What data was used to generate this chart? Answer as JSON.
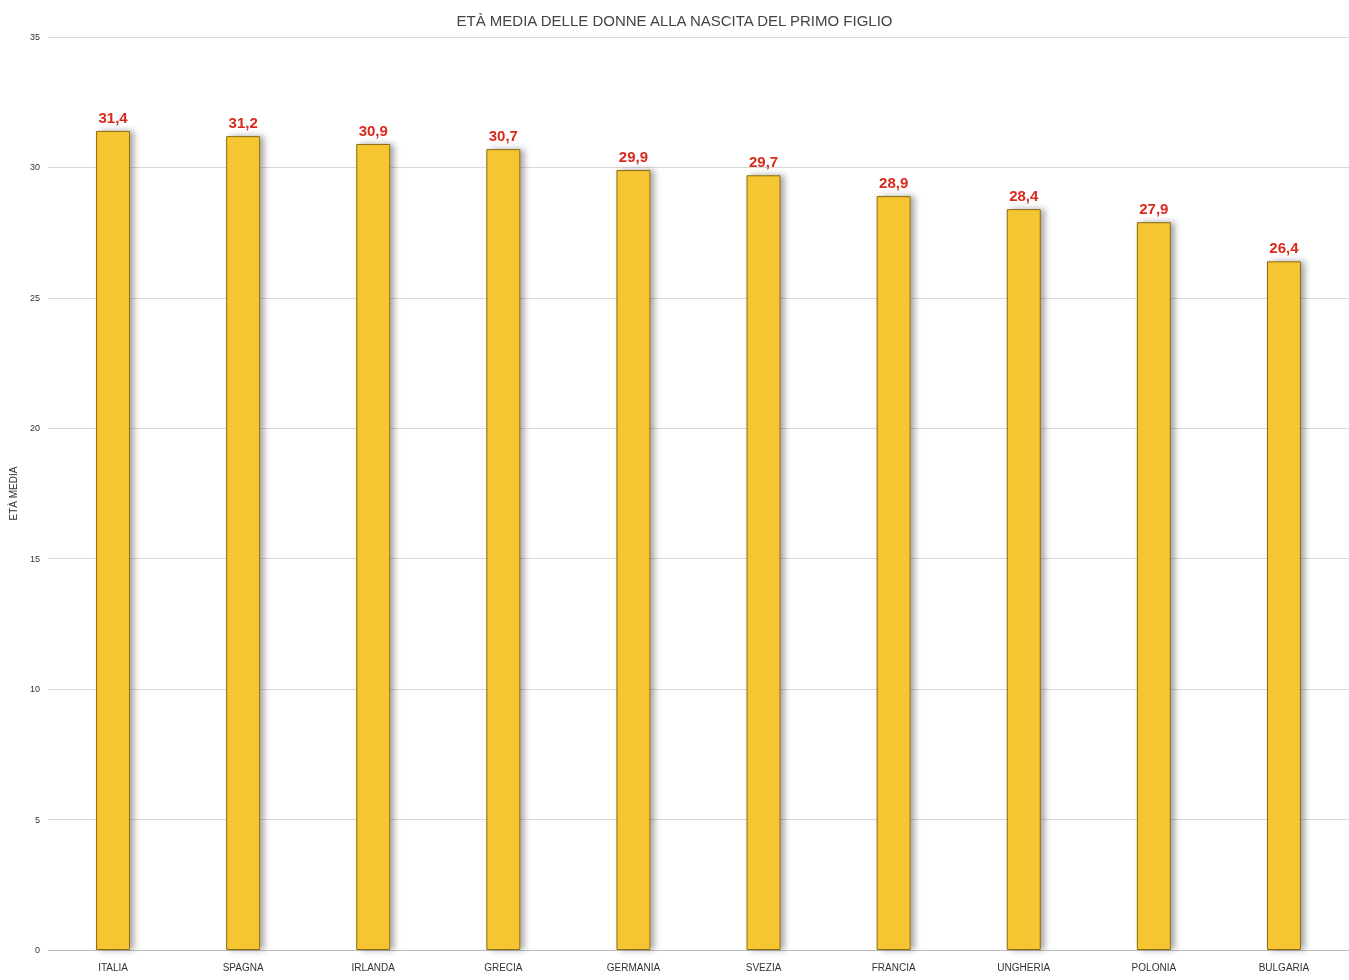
{
  "chart_data": {
    "type": "bar",
    "title": "ETÀ MEDIA DELLE DONNE ALLA NASCITA DEL PRIMO FIGLIO",
    "ylabel": "ETÀ MEDIA",
    "categories": [
      "ITALIA",
      "SPAGNA",
      "IRLANDA",
      "GRECIA",
      "GERMANIA",
      "SVEZIA",
      "FRANCIA",
      "UNGHERIA",
      "POLONIA",
      "BULGARIA"
    ],
    "values": [
      31.4,
      31.2,
      30.9,
      30.7,
      29.9,
      29.7,
      28.9,
      28.4,
      27.9,
      26.4
    ],
    "value_labels": [
      "31,4",
      "31,2",
      "30,9",
      "30,7",
      "29,9",
      "29,7",
      "28,9",
      "28,4",
      "27,9",
      "26,4"
    ],
    "color": "#f5c531",
    "ylim": [
      0,
      35
    ],
    "yticks": [
      0,
      5,
      10,
      15,
      20,
      25,
      30,
      35
    ],
    "grid": "y"
  }
}
